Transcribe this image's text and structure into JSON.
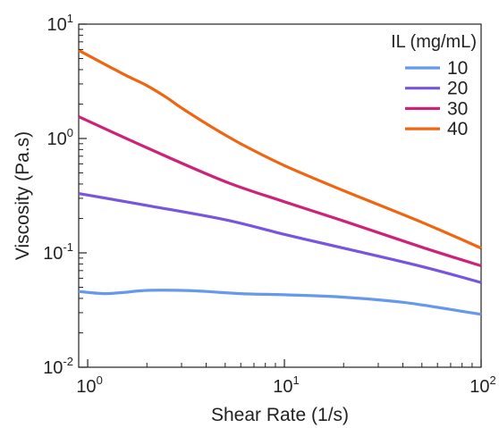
{
  "chart_data": {
    "type": "line",
    "xlabel": "Shear Rate (1/s)",
    "ylabel": "Viscosity (Pa.s)",
    "x_scale": "log",
    "y_scale": "log",
    "xlim": [
      0.9,
      100
    ],
    "ylim": [
      0.01,
      10
    ],
    "x_ticks": [
      {
        "value": 1,
        "base": "10",
        "exp": "0"
      },
      {
        "value": 10,
        "base": "10",
        "exp": "1"
      },
      {
        "value": 100,
        "base": "10",
        "exp": "2"
      }
    ],
    "y_ticks": [
      {
        "value": 10,
        "base": "10",
        "exp": "1"
      },
      {
        "value": 1,
        "base": "10",
        "exp": "0"
      },
      {
        "value": 0.1,
        "base": "10",
        "exp": "-1"
      },
      {
        "value": 0.01,
        "base": "10",
        "exp": "-2"
      }
    ],
    "grid": false,
    "legend": {
      "title": "IL (mg/mL)",
      "position": "top-right"
    },
    "series": [
      {
        "name": "10",
        "color": "#6699ee",
        "x": [
          0.9,
          1.2,
          1.5,
          2,
          3,
          4,
          6,
          10,
          20,
          40,
          70,
          100
        ],
        "y": [
          0.046,
          0.044,
          0.045,
          0.047,
          0.047,
          0.046,
          0.044,
          0.043,
          0.041,
          0.037,
          0.032,
          0.029
        ]
      },
      {
        "name": "20",
        "color": "#7755dd",
        "x": [
          0.9,
          2,
          5,
          10,
          20,
          50,
          100
        ],
        "y": [
          0.33,
          0.26,
          0.195,
          0.145,
          0.11,
          0.076,
          0.055
        ]
      },
      {
        "name": "30",
        "color": "#cc2277",
        "x": [
          0.9,
          2,
          5,
          10,
          20,
          50,
          100
        ],
        "y": [
          1.55,
          0.83,
          0.42,
          0.28,
          0.19,
          0.112,
          0.077
        ]
      },
      {
        "name": "40",
        "color": "#ee6611",
        "x": [
          0.9,
          1.5,
          2,
          2.5,
          3,
          4,
          6,
          10,
          20,
          50,
          100
        ],
        "y": [
          5.9,
          3.7,
          2.9,
          2.3,
          1.85,
          1.35,
          0.9,
          0.58,
          0.35,
          0.185,
          0.11
        ]
      }
    ]
  }
}
